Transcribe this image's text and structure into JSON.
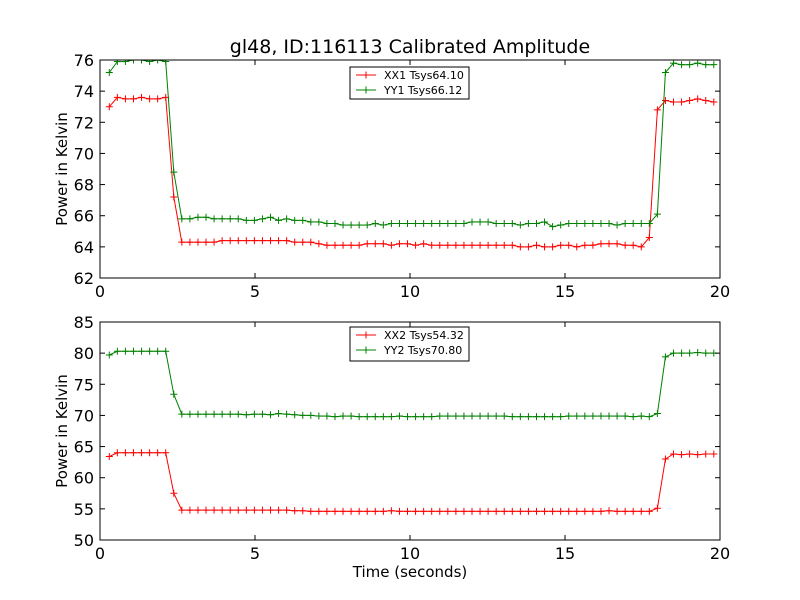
{
  "figure": {
    "title": "gl48, ID:116113 Calibrated Amplitude",
    "xlabel": "Time (seconds)"
  },
  "chart_data": [
    {
      "type": "line",
      "ylabel": "Power in Kelvin",
      "xlim": [
        0,
        20
      ],
      "ylim": [
        62,
        76
      ],
      "xticks": [
        0,
        5,
        10,
        15,
        20
      ],
      "yticks": [
        62,
        64,
        66,
        68,
        70,
        72,
        74,
        76
      ],
      "legend_position": "top-center",
      "grid": false,
      "x": [
        0.3,
        0.56,
        0.82,
        1.08,
        1.34,
        1.6,
        1.86,
        2.12,
        2.38,
        2.64,
        2.9,
        3.16,
        3.42,
        3.68,
        3.94,
        4.2,
        4.46,
        4.72,
        4.98,
        5.24,
        5.5,
        5.76,
        6.02,
        6.28,
        6.54,
        6.8,
        7.06,
        7.32,
        7.58,
        7.84,
        8.1,
        8.36,
        8.62,
        8.88,
        9.14,
        9.4,
        9.66,
        9.92,
        10.18,
        10.44,
        10.7,
        10.96,
        11.22,
        11.48,
        11.74,
        12.0,
        12.26,
        12.52,
        12.78,
        13.04,
        13.3,
        13.56,
        13.82,
        14.08,
        14.34,
        14.6,
        14.86,
        15.12,
        15.38,
        15.64,
        15.9,
        16.16,
        16.42,
        16.68,
        16.94,
        17.2,
        17.46,
        17.72,
        17.98,
        18.24,
        18.5,
        18.76,
        19.02,
        19.28,
        19.54,
        19.8
      ],
      "series": [
        {
          "name": "XX1 Tsys64.10",
          "color": "#ff0000",
          "values": [
            73.0,
            73.6,
            73.5,
            73.5,
            73.6,
            73.5,
            73.5,
            73.6,
            67.2,
            64.3,
            64.3,
            64.3,
            64.3,
            64.3,
            64.4,
            64.4,
            64.4,
            64.4,
            64.4,
            64.4,
            64.4,
            64.4,
            64.4,
            64.3,
            64.3,
            64.3,
            64.2,
            64.1,
            64.1,
            64.1,
            64.1,
            64.1,
            64.2,
            64.2,
            64.2,
            64.1,
            64.2,
            64.2,
            64.1,
            64.2,
            64.1,
            64.1,
            64.1,
            64.1,
            64.1,
            64.1,
            64.1,
            64.1,
            64.1,
            64.1,
            64.1,
            64.0,
            64.0,
            64.1,
            64.0,
            64.0,
            64.1,
            64.1,
            64.0,
            64.1,
            64.1,
            64.2,
            64.2,
            64.2,
            64.1,
            64.1,
            64.0,
            64.6,
            72.8,
            73.4,
            73.3,
            73.3,
            73.4,
            73.5,
            73.4,
            73.3
          ]
        },
        {
          "name": "YY1 Tsys66.12",
          "color": "#008000",
          "values": [
            75.2,
            75.9,
            75.9,
            76.0,
            76.0,
            75.9,
            76.0,
            75.9,
            68.8,
            65.8,
            65.8,
            65.9,
            65.9,
            65.8,
            65.8,
            65.8,
            65.8,
            65.7,
            65.7,
            65.8,
            65.9,
            65.7,
            65.8,
            65.7,
            65.7,
            65.6,
            65.6,
            65.5,
            65.5,
            65.4,
            65.4,
            65.4,
            65.4,
            65.5,
            65.4,
            65.5,
            65.5,
            65.5,
            65.5,
            65.5,
            65.5,
            65.5,
            65.5,
            65.5,
            65.5,
            65.6,
            65.6,
            65.6,
            65.5,
            65.5,
            65.5,
            65.4,
            65.5,
            65.5,
            65.6,
            65.3,
            65.4,
            65.5,
            65.5,
            65.5,
            65.5,
            65.5,
            65.5,
            65.4,
            65.5,
            65.5,
            65.5,
            65.5,
            66.1,
            75.2,
            75.8,
            75.7,
            75.7,
            75.8,
            75.7,
            75.7
          ]
        }
      ]
    },
    {
      "type": "line",
      "ylabel": "Power in Kelvin",
      "xlim": [
        0,
        20
      ],
      "ylim": [
        50,
        85
      ],
      "xticks": [
        0,
        5,
        10,
        15,
        20
      ],
      "yticks": [
        50,
        55,
        60,
        65,
        70,
        75,
        80,
        85
      ],
      "legend_position": "top-center",
      "grid": false,
      "x": [
        0.3,
        0.56,
        0.82,
        1.08,
        1.34,
        1.6,
        1.86,
        2.12,
        2.38,
        2.64,
        2.9,
        3.16,
        3.42,
        3.68,
        3.94,
        4.2,
        4.46,
        4.72,
        4.98,
        5.24,
        5.5,
        5.76,
        6.02,
        6.28,
        6.54,
        6.8,
        7.06,
        7.32,
        7.58,
        7.84,
        8.1,
        8.36,
        8.62,
        8.88,
        9.14,
        9.4,
        9.66,
        9.92,
        10.18,
        10.44,
        10.7,
        10.96,
        11.22,
        11.48,
        11.74,
        12.0,
        12.26,
        12.52,
        12.78,
        13.04,
        13.3,
        13.56,
        13.82,
        14.08,
        14.34,
        14.6,
        14.86,
        15.12,
        15.38,
        15.64,
        15.9,
        16.16,
        16.42,
        16.68,
        16.94,
        17.2,
        17.46,
        17.72,
        17.98,
        18.24,
        18.5,
        18.76,
        19.02,
        19.28,
        19.54,
        19.8
      ],
      "series": [
        {
          "name": "XX2 Tsys54.32",
          "color": "#ff0000",
          "values": [
            63.4,
            64.0,
            64.0,
            64.0,
            64.0,
            64.0,
            64.0,
            64.0,
            57.5,
            54.8,
            54.8,
            54.8,
            54.8,
            54.8,
            54.8,
            54.8,
            54.8,
            54.8,
            54.8,
            54.8,
            54.8,
            54.8,
            54.8,
            54.7,
            54.7,
            54.6,
            54.6,
            54.6,
            54.6,
            54.6,
            54.6,
            54.6,
            54.6,
            54.6,
            54.6,
            54.7,
            54.6,
            54.6,
            54.6,
            54.6,
            54.6,
            54.6,
            54.6,
            54.6,
            54.6,
            54.6,
            54.6,
            54.6,
            54.6,
            54.6,
            54.6,
            54.6,
            54.6,
            54.6,
            54.6,
            54.6,
            54.6,
            54.6,
            54.6,
            54.6,
            54.6,
            54.6,
            54.7,
            54.6,
            54.6,
            54.6,
            54.6,
            54.6,
            55.1,
            63.0,
            63.8,
            63.7,
            63.8,
            63.7,
            63.8,
            63.8
          ]
        },
        {
          "name": "YY2 Tsys70.80",
          "color": "#008000",
          "values": [
            79.7,
            80.3,
            80.3,
            80.3,
            80.3,
            80.3,
            80.3,
            80.3,
            73.4,
            70.2,
            70.2,
            70.2,
            70.2,
            70.2,
            70.2,
            70.2,
            70.2,
            70.1,
            70.2,
            70.2,
            70.1,
            70.3,
            70.2,
            70.1,
            70.0,
            70.0,
            69.9,
            69.9,
            69.8,
            69.9,
            69.9,
            69.8,
            69.8,
            69.8,
            69.8,
            69.8,
            69.9,
            69.8,
            69.8,
            69.8,
            69.8,
            69.9,
            69.9,
            69.9,
            69.9,
            69.9,
            69.9,
            69.9,
            69.9,
            69.9,
            69.8,
            69.8,
            69.8,
            69.8,
            69.8,
            69.8,
            69.8,
            69.9,
            69.9,
            69.9,
            69.9,
            69.9,
            69.9,
            69.9,
            69.9,
            69.8,
            69.9,
            69.8,
            70.3,
            79.4,
            80.0,
            80.0,
            80.0,
            80.1,
            80.0,
            80.0
          ]
        }
      ]
    }
  ]
}
